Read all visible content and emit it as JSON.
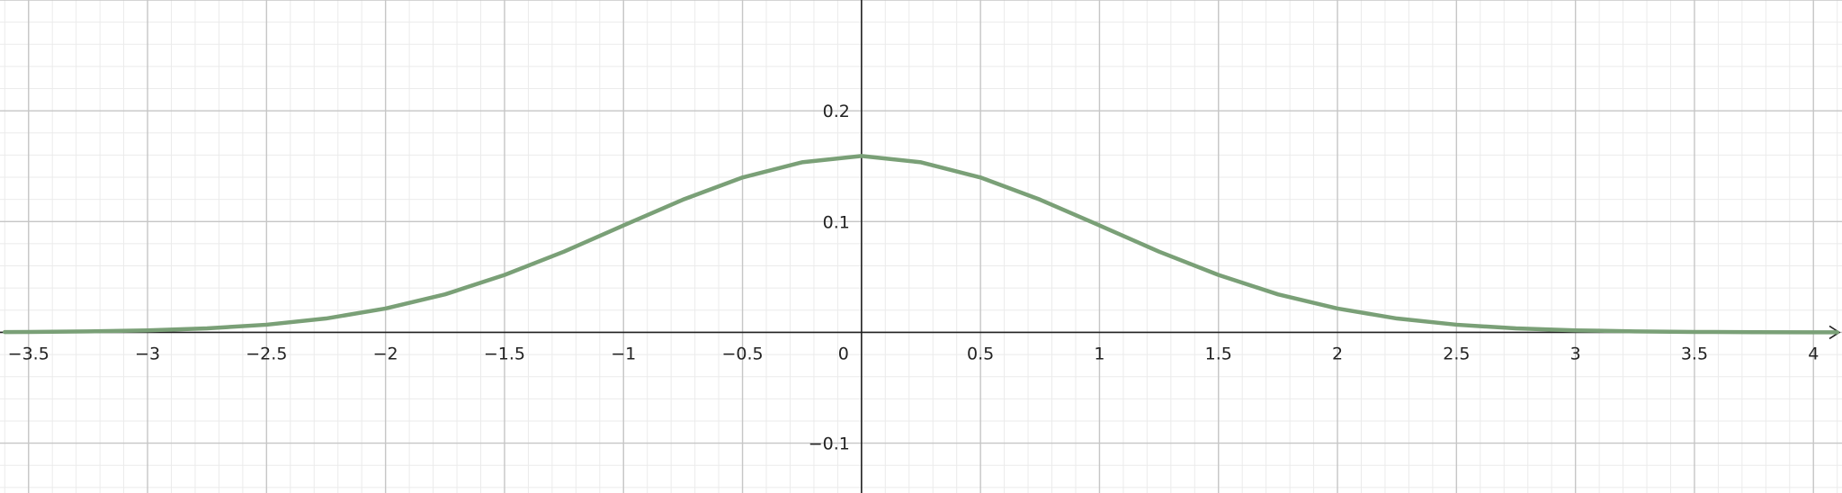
{
  "chart_data": {
    "type": "line",
    "title": "",
    "xlabel": "",
    "ylabel": "",
    "xlim": [
      -3.62,
      4.12
    ],
    "ylim": [
      -0.145,
      0.3
    ],
    "grid": true,
    "x_ticks": [
      -3.5,
      -3,
      -2.5,
      -2,
      -1.5,
      -1,
      -0.5,
      0,
      0.5,
      1,
      1.5,
      2,
      2.5,
      3,
      3.5,
      4
    ],
    "x_tick_labels": [
      "−3.5",
      "−3",
      "−2.5",
      "−2",
      "−1.5",
      "−1",
      "−0.5",
      "0",
      "0.5",
      "1",
      "1.5",
      "2",
      "2.5",
      "3",
      "3.5",
      "4"
    ],
    "y_ticks": [
      -0.1,
      0.1,
      0.2
    ],
    "y_tick_labels": [
      "−0.1",
      "0.1",
      "0.2"
    ],
    "series": [
      {
        "color": "#7aa077",
        "x": [
          -3.6,
          -3.5,
          -3.25,
          -3,
          -2.75,
          -2.5,
          -2.25,
          -2,
          -1.75,
          -1.5,
          -1.25,
          -1,
          -0.75,
          -0.5,
          -0.25,
          0,
          0.25,
          0.5,
          0.75,
          1,
          1.25,
          1.5,
          1.75,
          2,
          2.25,
          2.5,
          2.75,
          3,
          3.25,
          3.5,
          3.75,
          4,
          4.1
        ],
        "y": [
          0.0003,
          0.0004,
          0.0009,
          0.0018,
          0.0036,
          0.0069,
          0.0125,
          0.0215,
          0.0343,
          0.0518,
          0.0729,
          0.0965,
          0.1198,
          0.1398,
          0.1535,
          0.1592,
          0.1535,
          0.1398,
          0.1198,
          0.0965,
          0.0729,
          0.0518,
          0.0343,
          0.0215,
          0.0125,
          0.0069,
          0.0036,
          0.0018,
          0.0009,
          0.0004,
          0.0002,
          0.0001,
          0.0001
        ]
      }
    ]
  },
  "colors": {
    "minor_grid": "#ebebeb",
    "major_grid": "#c6c6c6",
    "axis": "#222222",
    "curve": "#7aa077"
  }
}
